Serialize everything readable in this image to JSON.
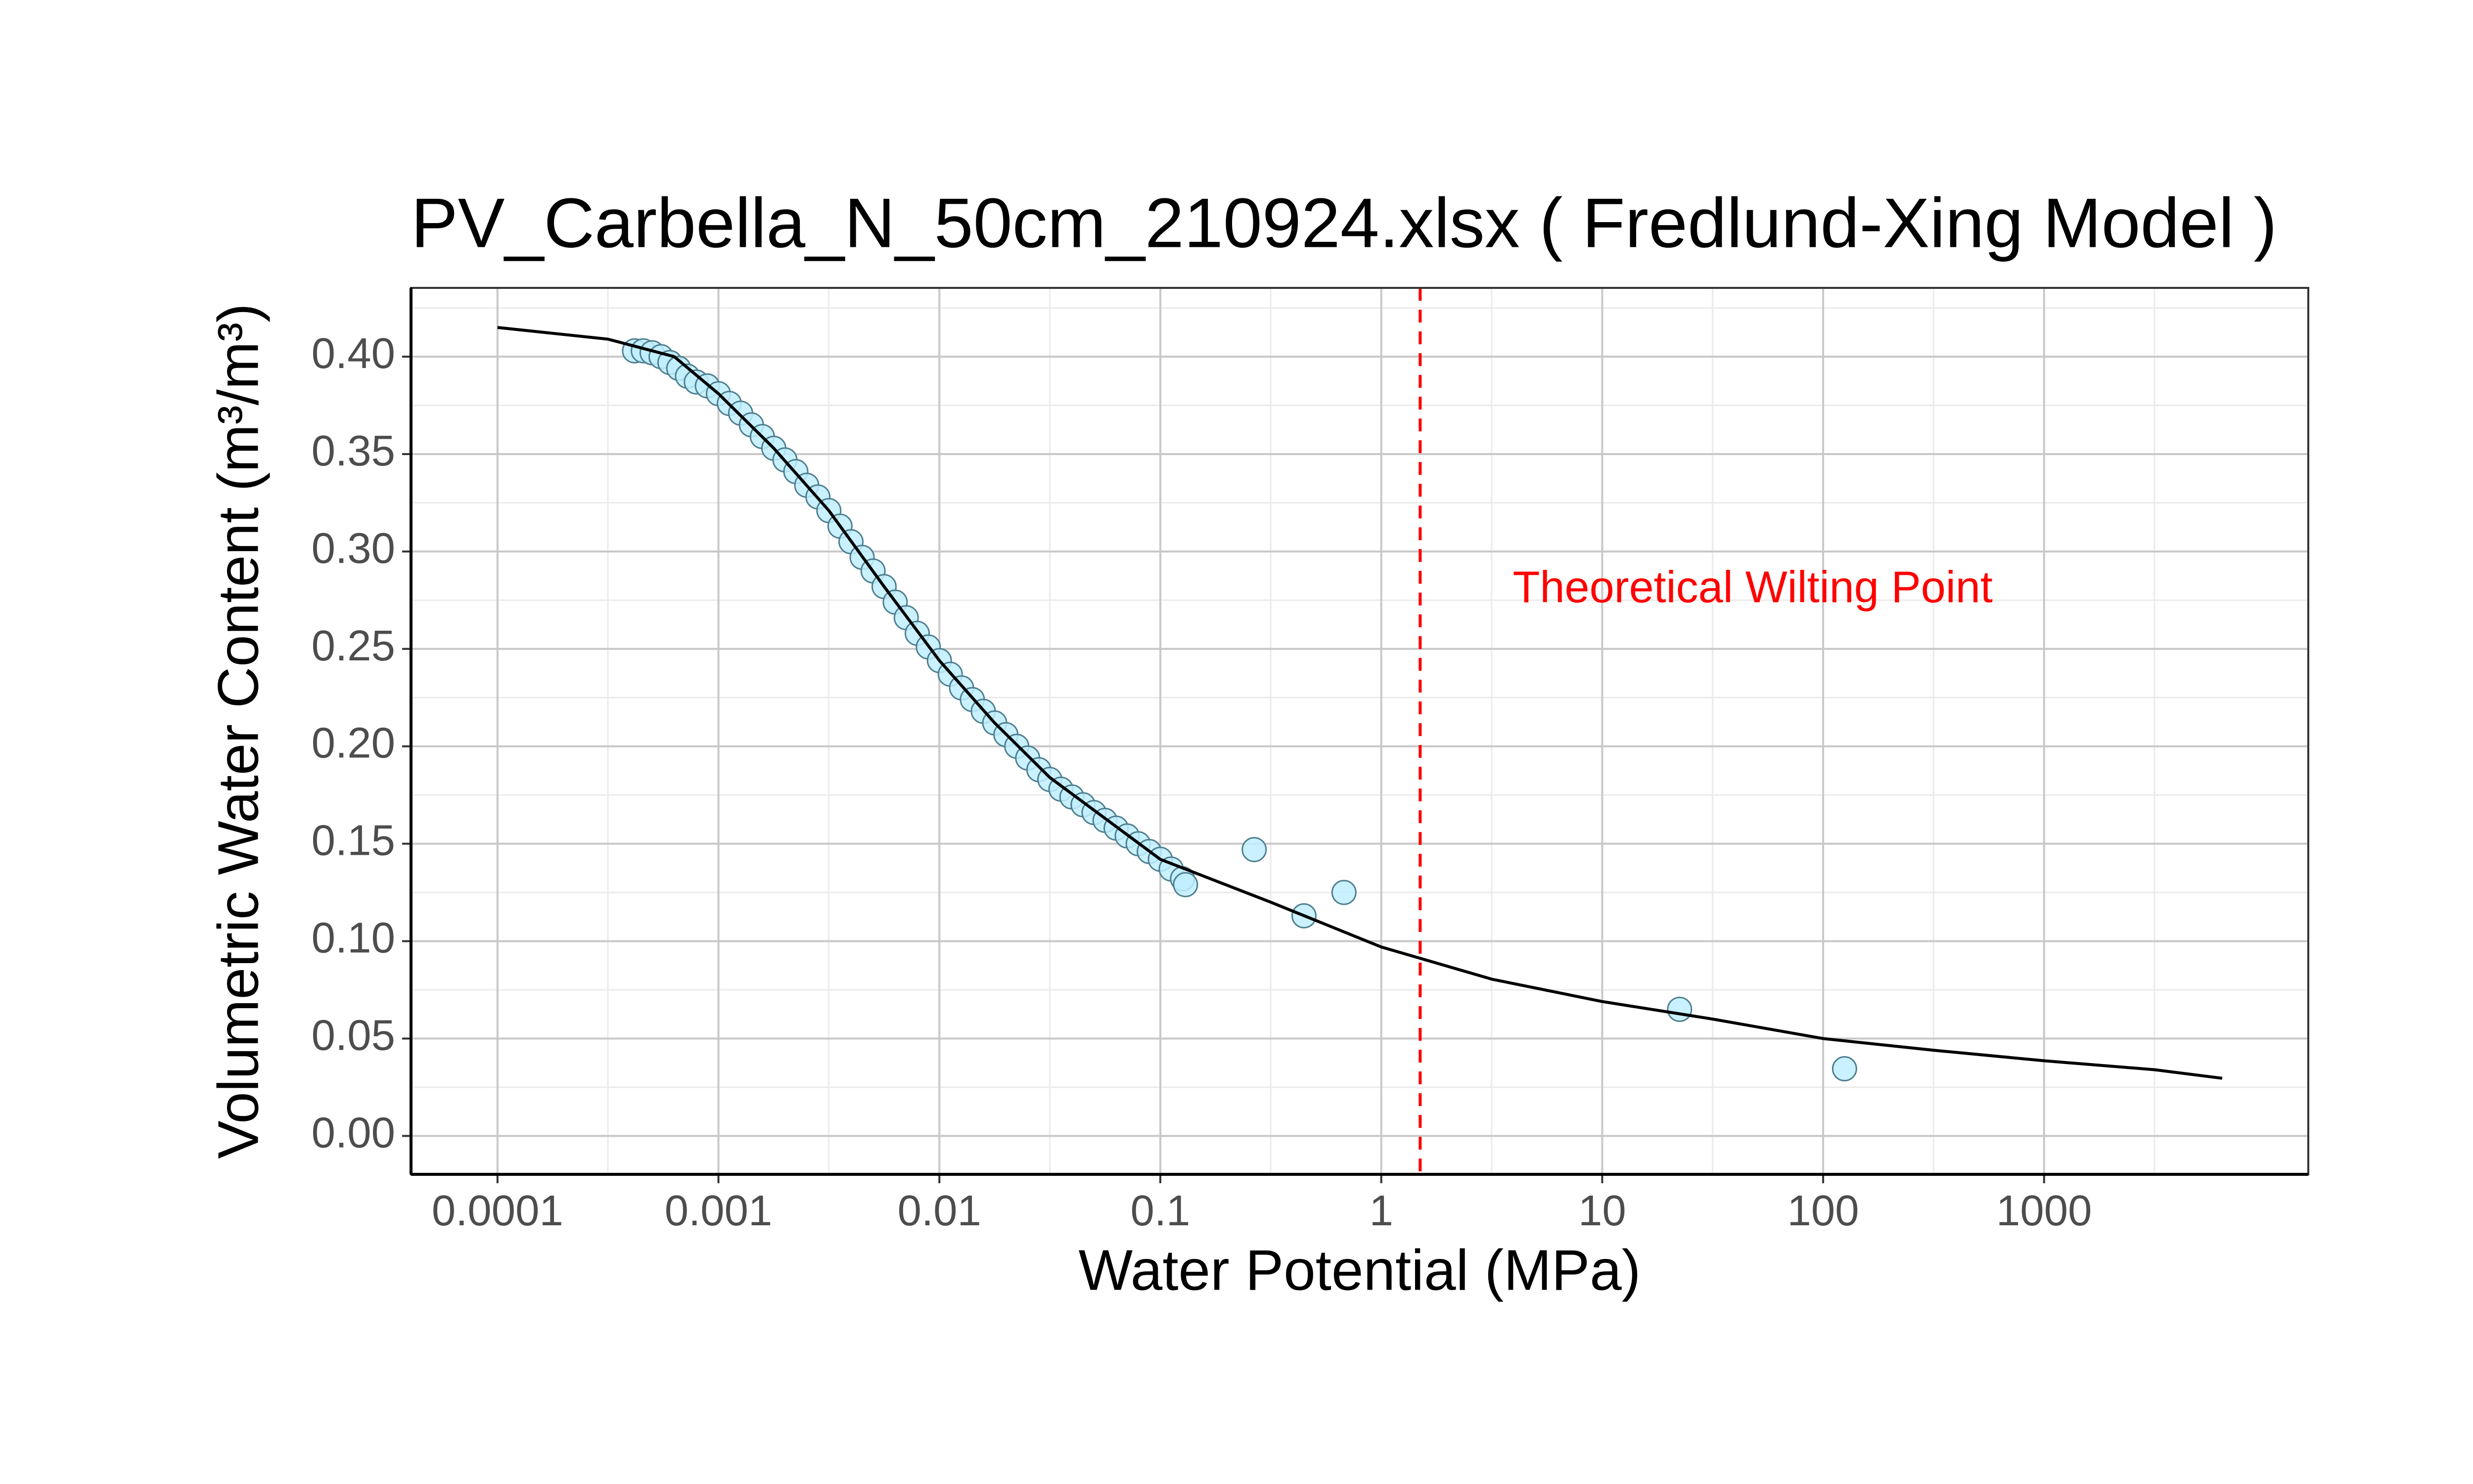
{
  "chart_data": {
    "type": "scatter",
    "title": "PV_Carbella_N_50cm_210924.xlsx ( Fredlund-Xing Model )",
    "x_label": "Water Potential (MPa)",
    "y_label": "Volumetric Water Content (m³/m³)",
    "x_log": true,
    "grid": true,
    "xlim": [
      4.06e-05,
      15700
    ],
    "ylim": [
      -0.0197,
      0.4353
    ],
    "xticks": [
      0.0001,
      0.001,
      0.01,
      0.1,
      1,
      10,
      100,
      1000
    ],
    "x_minor_ticks": [
      3.16e-05,
      0.000316,
      0.00316,
      0.0316,
      0.316,
      3.16,
      31.6,
      316,
      3160
    ],
    "yticks": [
      {
        "value": 0,
        "label": "0.00"
      },
      {
        "value": 0.05,
        "label": "0.05"
      },
      {
        "value": 0.1,
        "label": "0.10"
      },
      {
        "value": 0.15,
        "label": "0.15"
      },
      {
        "value": 0.2,
        "label": "0.20"
      },
      {
        "value": 0.25,
        "label": "0.25"
      },
      {
        "value": 0.3,
        "label": "0.30"
      },
      {
        "value": 0.35,
        "label": "0.35"
      },
      {
        "value": 0.4,
        "label": "0.40"
      }
    ],
    "y_minor_ticks": [
      0.025,
      0.075,
      0.125,
      0.175,
      0.225,
      0.275,
      0.325,
      0.375,
      0.425
    ],
    "points": {
      "color": "#bfefff",
      "x": [
        0.000417,
        0.000457,
        0.000501,
        0.00055,
        0.000603,
        0.000661,
        0.000724,
        0.000794,
        0.000891,
        0.001,
        0.00112,
        0.00126,
        0.00141,
        0.00158,
        0.00178,
        0.002,
        0.00224,
        0.00251,
        0.00282,
        0.00316,
        0.00355,
        0.00398,
        0.00447,
        0.00501,
        0.00562,
        0.00631,
        0.00708,
        0.00794,
        0.00891,
        0.01,
        0.0112,
        0.0126,
        0.0141,
        0.0158,
        0.0178,
        0.02,
        0.0224,
        0.0251,
        0.0282,
        0.0316,
        0.0355,
        0.0398,
        0.0447,
        0.0501,
        0.0562,
        0.0631,
        0.0708,
        0.0794,
        0.0891,
        0.1,
        0.112,
        0.126,
        0.13,
        0.266,
        0.447,
        0.678,
        22.4,
        125
      ],
      "values": [
        0.403,
        0.403,
        0.402,
        0.4,
        0.397,
        0.394,
        0.39,
        0.387,
        0.385,
        0.381,
        0.376,
        0.371,
        0.365,
        0.359,
        0.353,
        0.347,
        0.341,
        0.334,
        0.328,
        0.321,
        0.313,
        0.305,
        0.297,
        0.29,
        0.282,
        0.274,
        0.266,
        0.258,
        0.251,
        0.244,
        0.237,
        0.23,
        0.224,
        0.218,
        0.212,
        0.206,
        0.2,
        0.194,
        0.188,
        0.183,
        0.178,
        0.174,
        0.17,
        0.166,
        0.162,
        0.158,
        0.154,
        0.15,
        0.146,
        0.142,
        0.137,
        0.132,
        0.129,
        0.147,
        0.113,
        0.125,
        0.065,
        0.0345
      ]
    },
    "curve": {
      "color": "#000000",
      "x": [
        0.0001,
        0.000316,
        0.000631,
        0.001,
        0.00178,
        0.00316,
        0.00562,
        0.01,
        0.0178,
        0.0316,
        0.0562,
        0.1,
        0.316,
        1,
        3.16,
        10,
        31.6,
        100,
        316,
        1000,
        3160,
        6400
      ],
      "values": [
        0.415,
        0.409,
        0.4,
        0.381,
        0.353,
        0.321,
        0.282,
        0.244,
        0.212,
        0.184,
        0.163,
        0.142,
        0.12,
        0.097,
        0.0805,
        0.069,
        0.06,
        0.05,
        0.044,
        0.0386,
        0.034,
        0.0296
      ]
    },
    "vline": {
      "x": 1.5,
      "color": "#ff0000"
    },
    "annotation": {
      "text": "Theoretical Wilting Point",
      "x": 48,
      "y": 0.28,
      "color": "#ff0000"
    }
  }
}
